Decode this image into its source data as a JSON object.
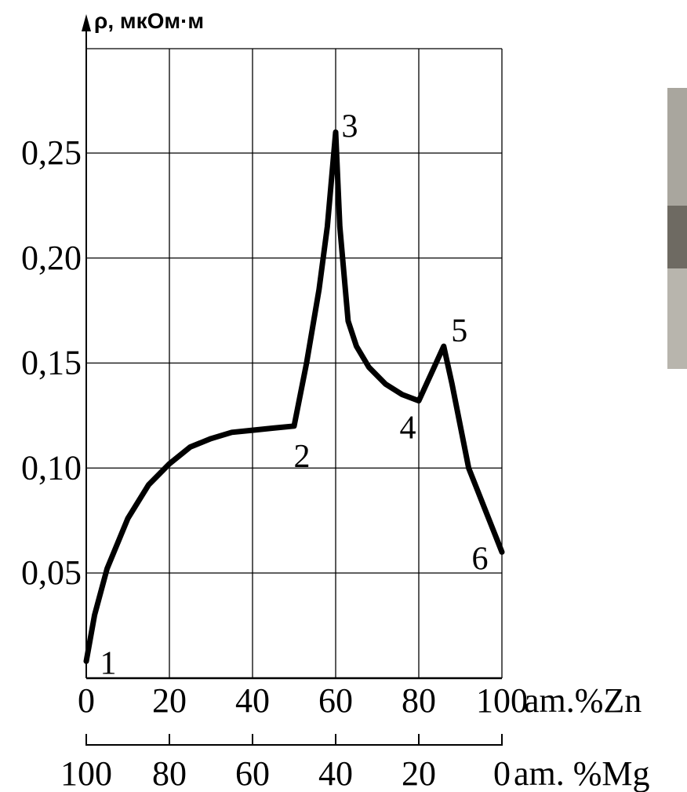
{
  "chart_data": {
    "type": "line",
    "ylabel": "ρ, мкОм·м",
    "xlabel_top": "am.%Zn",
    "xlabel_bottom": "am. %Mg",
    "xlim": [
      0,
      100
    ],
    "ylim": [
      0,
      0.3
    ],
    "grid": true,
    "x_ticks_top": [
      "0",
      "20",
      "40",
      "60",
      "80",
      "100"
    ],
    "x_ticks_bottom": [
      "100",
      "80",
      "60",
      "40",
      "20",
      "0"
    ],
    "y_ticks": [
      {
        "value": 0.05,
        "label": "0,05"
      },
      {
        "value": 0.1,
        "label": "0,10"
      },
      {
        "value": 0.15,
        "label": "0,15"
      },
      {
        "value": 0.2,
        "label": "0,20"
      },
      {
        "value": 0.25,
        "label": "0,25"
      }
    ],
    "series": [
      {
        "x": [
          0,
          2,
          5,
          10,
          15,
          20,
          25,
          30,
          35,
          40,
          45,
          50,
          53,
          56,
          58,
          60,
          61,
          63,
          65,
          68,
          72,
          76,
          80,
          83,
          86,
          88,
          90,
          92,
          94,
          96,
          98,
          100
        ],
        "y": [
          0.008,
          0.03,
          0.052,
          0.076,
          0.092,
          0.102,
          0.11,
          0.114,
          0.117,
          0.118,
          0.119,
          0.12,
          0.15,
          0.185,
          0.215,
          0.26,
          0.215,
          0.17,
          0.158,
          0.148,
          0.14,
          0.135,
          0.132,
          0.145,
          0.158,
          0.14,
          0.12,
          0.1,
          0.09,
          0.08,
          0.07,
          0.06
        ]
      }
    ],
    "point_labels": [
      {
        "label": "1",
        "x": 0,
        "y": 0.008
      },
      {
        "label": "2",
        "x": 50,
        "y": 0.12
      },
      {
        "label": "3",
        "x": 60,
        "y": 0.26
      },
      {
        "label": "4",
        "x": 80,
        "y": 0.132
      },
      {
        "label": "5",
        "x": 86,
        "y": 0.158
      },
      {
        "label": "6",
        "x": 100,
        "y": 0.06
      }
    ]
  },
  "photo": {
    "name": "photo-fragment",
    "color": "#a9a69e"
  }
}
